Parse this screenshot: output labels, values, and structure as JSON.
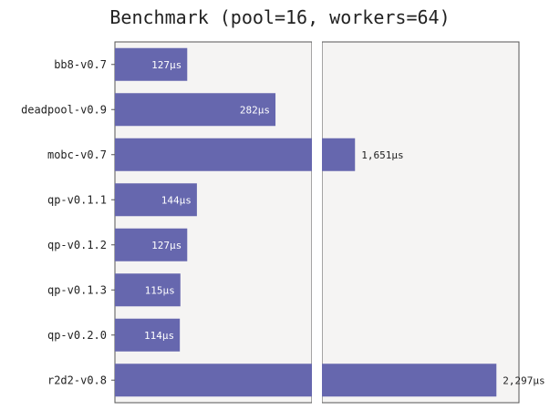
{
  "chart_data": {
    "type": "bar",
    "orientation": "horizontal",
    "title": "Benchmark (pool=16, workers=64)",
    "xlabel": "",
    "ylabel": "",
    "broken_x_axis": true,
    "grid": false,
    "legend": "none",
    "categories": [
      "bb8-v0.7",
      "deadpool-v0.9",
      "mobc-v0.7",
      "qp-v0.1.1",
      "qp-v0.1.2",
      "qp-v0.1.3",
      "qp-v0.2.0",
      "r2d2-v0.8"
    ],
    "values": [
      127,
      282,
      1651,
      144,
      127,
      115,
      114,
      2297
    ],
    "value_labels": [
      "127µs",
      "282µs",
      "1,651µs",
      "144µs",
      "127µs",
      "115µs",
      "114µs",
      "2,297µs"
    ],
    "unit": "µs",
    "colors": {
      "bar": "#6667ae",
      "panel": "#f5f4f3",
      "frame": "#555555",
      "label_inside": "#ffffff",
      "label_outside": "#222222",
      "text": "#222222"
    }
  }
}
